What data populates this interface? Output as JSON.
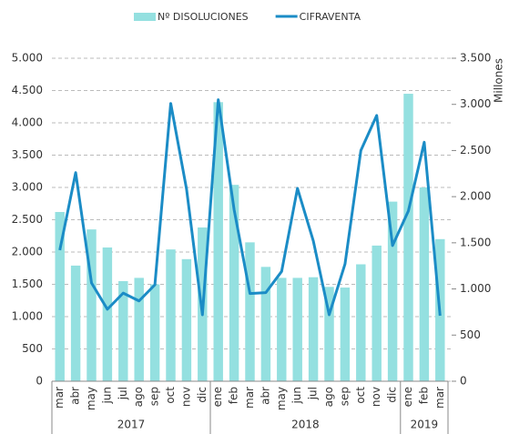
{
  "chart_data": {
    "type": "bar-line",
    "groups": [
      {
        "name": "2017",
        "categories": [
          "mar",
          "abr",
          "may",
          "jun",
          "jul",
          "ago",
          "sep",
          "oct",
          "nov",
          "dic"
        ]
      },
      {
        "name": "2018",
        "categories": [
          "ene",
          "feb",
          "mar",
          "abr",
          "may",
          "jun",
          "jul",
          "ago",
          "sep",
          "oct",
          "nov",
          "dic"
        ]
      },
      {
        "name": "2019",
        "categories": [
          "ene",
          "feb",
          "mar"
        ]
      }
    ],
    "series": [
      {
        "name": "Nº DISOLUCIONES",
        "type": "bar",
        "color": "#94e0e0",
        "values": [
          2620,
          1790,
          2350,
          2070,
          1550,
          1600,
          1500,
          2040,
          1890,
          2380,
          4320,
          3040,
          2150,
          1770,
          1600,
          1600,
          1610,
          1460,
          1450,
          1810,
          2100,
          2780,
          4450,
          3000,
          2200
        ]
      },
      {
        "name": "CIFRAVENTA",
        "type": "line",
        "axis": "y2",
        "color": "#1b8cc6",
        "values": [
          1420,
          2260,
          1065,
          780,
          955,
          870,
          1045,
          3010,
          2080,
          720,
          3050,
          1860,
          950,
          960,
          1190,
          2090,
          1520,
          720,
          1270,
          2500,
          2880,
          1470,
          1845,
          2590,
          710
        ]
      }
    ],
    "ylim": [
      0,
      5000
    ],
    "yticks": [
      0,
      500,
      {
        "value": 1000,
        "label": "1.000"
      },
      {
        "value": 1500,
        "label": "1.500"
      },
      {
        "value": 2000,
        "label": "2.000"
      },
      {
        "value": 2500,
        "label": "2.500"
      },
      {
        "value": 3000,
        "label": "3.000"
      },
      {
        "value": 3500,
        "label": "3.500"
      },
      {
        "value": 4000,
        "label": "4.000"
      },
      {
        "value": 4500,
        "label": "4.500"
      },
      {
        "value": 5000,
        "label": "5.000"
      }
    ],
    "y2lim": [
      0,
      3500
    ],
    "y2ticks": [
      0,
      500,
      {
        "value": 1000,
        "label": "1.000"
      },
      {
        "value": 1500,
        "label": "1.500"
      },
      {
        "value": 2000,
        "label": "2.000"
      },
      {
        "value": 2500,
        "label": "2.500"
      },
      {
        "value": 3000,
        "label": "3.000"
      },
      {
        "value": 3500,
        "label": "3.500"
      }
    ],
    "y2label": "Millones",
    "grid": true,
    "legend": "top"
  }
}
